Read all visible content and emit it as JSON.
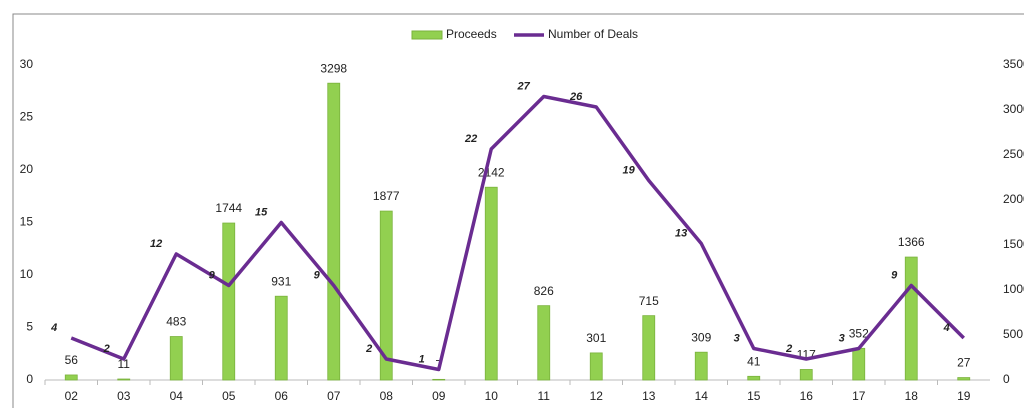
{
  "chart_data": {
    "type": "bar-line",
    "categories": [
      "02",
      "03",
      "04",
      "05",
      "06",
      "07",
      "08",
      "09",
      "10",
      "11",
      "12",
      "13",
      "14",
      "15",
      "16",
      "17",
      "18",
      "19"
    ],
    "series": [
      {
        "name": "Proceeds",
        "type": "bar",
        "axis": "y2",
        "color": "#92d050",
        "values": [
          56,
          11,
          483,
          1744,
          931,
          3298,
          1877,
          7,
          2142,
          826,
          301,
          715,
          309,
          41,
          117,
          352,
          1366,
          27
        ]
      },
      {
        "name": "Number of Deals",
        "type": "line",
        "axis": "y",
        "color": "#6a2c91",
        "values": [
          4,
          2,
          12,
          9,
          15,
          9,
          2,
          1,
          22,
          27,
          26,
          19,
          13,
          3,
          2,
          3,
          9,
          4
        ]
      }
    ],
    "ylim": [
      0,
      30
    ],
    "yticks": [
      0,
      5,
      10,
      15,
      20,
      25,
      30
    ],
    "y2lim": [
      0,
      3500
    ],
    "y2ticks": [
      0,
      500,
      1000,
      1500,
      2000,
      2500,
      3000,
      3500
    ],
    "legend": "top"
  }
}
